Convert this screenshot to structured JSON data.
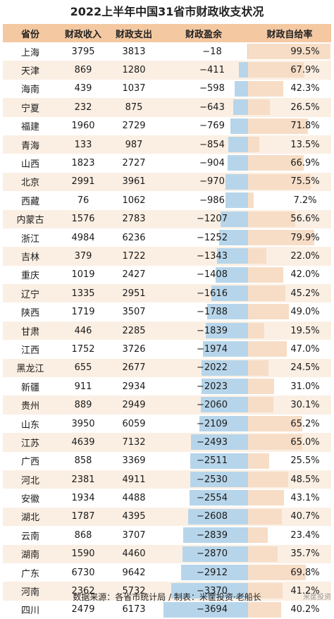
{
  "chart_data": {
    "type": "table",
    "title": "2022上半年中国31省市财政收支状况",
    "columns": [
      "省份",
      "财政收入",
      "财政支出",
      "财政盈余",
      "财政自给率"
    ],
    "rows": [
      {
        "province": "上海",
        "income": "3795",
        "expense": "3813",
        "surplus": "−18",
        "ratio": "99.5%",
        "surplus_value": -18,
        "ratio_value": 99.5
      },
      {
        "province": "天津",
        "income": "869",
        "expense": "1280",
        "surplus": "−411",
        "ratio": "67.9%",
        "surplus_value": -411,
        "ratio_value": 67.9
      },
      {
        "province": "海南",
        "income": "439",
        "expense": "1037",
        "surplus": "−598",
        "ratio": "42.3%",
        "surplus_value": -598,
        "ratio_value": 42.3
      },
      {
        "province": "宁夏",
        "income": "232",
        "expense": "875",
        "surplus": "−643",
        "ratio": "26.5%",
        "surplus_value": -643,
        "ratio_value": 26.5
      },
      {
        "province": "福建",
        "income": "1960",
        "expense": "2729",
        "surplus": "−769",
        "ratio": "71.8%",
        "surplus_value": -769,
        "ratio_value": 71.8
      },
      {
        "province": "青海",
        "income": "133",
        "expense": "987",
        "surplus": "−854",
        "ratio": "13.5%",
        "surplus_value": -854,
        "ratio_value": 13.5
      },
      {
        "province": "山西",
        "income": "1823",
        "expense": "2727",
        "surplus": "−904",
        "ratio": "66.9%",
        "surplus_value": -904,
        "ratio_value": 66.9
      },
      {
        "province": "北京",
        "income": "2991",
        "expense": "3961",
        "surplus": "−970",
        "ratio": "75.5%",
        "surplus_value": -970,
        "ratio_value": 75.5
      },
      {
        "province": "西藏",
        "income": "76",
        "expense": "1062",
        "surplus": "−986",
        "ratio": "7.2%",
        "surplus_value": -986,
        "ratio_value": 7.2
      },
      {
        "province": "内蒙古",
        "income": "1576",
        "expense": "2783",
        "surplus": "−1207",
        "ratio": "56.6%",
        "surplus_value": -1207,
        "ratio_value": 56.6
      },
      {
        "province": "浙江",
        "income": "4984",
        "expense": "6236",
        "surplus": "−1252",
        "ratio": "79.9%",
        "surplus_value": -1252,
        "ratio_value": 79.9
      },
      {
        "province": "吉林",
        "income": "379",
        "expense": "1722",
        "surplus": "−1343",
        "ratio": "22.0%",
        "surplus_value": -1343,
        "ratio_value": 22.0
      },
      {
        "province": "重庆",
        "income": "1019",
        "expense": "2427",
        "surplus": "−1408",
        "ratio": "42.0%",
        "surplus_value": -1408,
        "ratio_value": 42.0
      },
      {
        "province": "辽宁",
        "income": "1335",
        "expense": "2951",
        "surplus": "−1616",
        "ratio": "45.2%",
        "surplus_value": -1616,
        "ratio_value": 45.2
      },
      {
        "province": "陕西",
        "income": "1719",
        "expense": "3507",
        "surplus": "−1788",
        "ratio": "49.0%",
        "surplus_value": -1788,
        "ratio_value": 49.0
      },
      {
        "province": "甘肃",
        "income": "446",
        "expense": "2285",
        "surplus": "−1839",
        "ratio": "19.5%",
        "surplus_value": -1839,
        "ratio_value": 19.5
      },
      {
        "province": "江西",
        "income": "1752",
        "expense": "3726",
        "surplus": "−1974",
        "ratio": "47.0%",
        "surplus_value": -1974,
        "ratio_value": 47.0
      },
      {
        "province": "黑龙江",
        "income": "655",
        "expense": "2677",
        "surplus": "−2022",
        "ratio": "24.5%",
        "surplus_value": -2022,
        "ratio_value": 24.5
      },
      {
        "province": "新疆",
        "income": "911",
        "expense": "2934",
        "surplus": "−2023",
        "ratio": "31.0%",
        "surplus_value": -2023,
        "ratio_value": 31.0
      },
      {
        "province": "贵州",
        "income": "889",
        "expense": "2949",
        "surplus": "−2060",
        "ratio": "30.1%",
        "surplus_value": -2060,
        "ratio_value": 30.1
      },
      {
        "province": "山东",
        "income": "3950",
        "expense": "6059",
        "surplus": "−2109",
        "ratio": "65.2%",
        "surplus_value": -2109,
        "ratio_value": 65.2
      },
      {
        "province": "江苏",
        "income": "4639",
        "expense": "7132",
        "surplus": "−2493",
        "ratio": "65.0%",
        "surplus_value": -2493,
        "ratio_value": 65.0
      },
      {
        "province": "广西",
        "income": "858",
        "expense": "3369",
        "surplus": "−2511",
        "ratio": "25.5%",
        "surplus_value": -2511,
        "ratio_value": 25.5
      },
      {
        "province": "河北",
        "income": "2381",
        "expense": "4911",
        "surplus": "−2530",
        "ratio": "48.5%",
        "surplus_value": -2530,
        "ratio_value": 48.5
      },
      {
        "province": "安徽",
        "income": "1934",
        "expense": "4488",
        "surplus": "−2554",
        "ratio": "43.1%",
        "surplus_value": -2554,
        "ratio_value": 43.1
      },
      {
        "province": "湖北",
        "income": "1787",
        "expense": "4395",
        "surplus": "−2608",
        "ratio": "40.7%",
        "surplus_value": -2608,
        "ratio_value": 40.7
      },
      {
        "province": "云南",
        "income": "868",
        "expense": "3707",
        "surplus": "−2839",
        "ratio": "23.4%",
        "surplus_value": -2839,
        "ratio_value": 23.4
      },
      {
        "province": "湖南",
        "income": "1590",
        "expense": "4460",
        "surplus": "−2870",
        "ratio": "35.7%",
        "surplus_value": -2870,
        "ratio_value": 35.7
      },
      {
        "province": "广东",
        "income": "6730",
        "expense": "9642",
        "surplus": "−2912",
        "ratio": "69.8%",
        "surplus_value": -2912,
        "ratio_value": 69.8
      },
      {
        "province": "河南",
        "income": "2362",
        "expense": "5732",
        "surplus": "−3370",
        "ratio": "41.2%",
        "surplus_value": -3370,
        "ratio_value": 41.2
      },
      {
        "province": "四川",
        "income": "2479",
        "expense": "6173",
        "surplus": "−3694",
        "ratio": "40.2%",
        "surplus_value": -3694,
        "ratio_value": 40.2
      }
    ],
    "colors": {
      "header_bg": "#f4c9a2",
      "stripe_bg": "#fbefe3",
      "surplus_bar": "#b7d5ea",
      "ratio_bar": "#f7ddc6"
    },
    "footer": "数据来源：各省市统计局 / 制表：米筐投资·老船长",
    "stamp": "米筐投资"
  }
}
